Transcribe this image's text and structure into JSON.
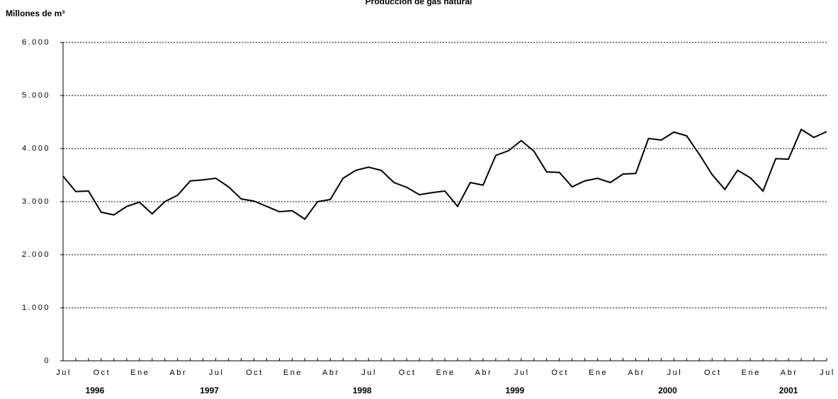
{
  "chart_data": {
    "type": "line",
    "title": "Producción de gas natural",
    "y_label": "Millones de m³",
    "categories": [
      "Jul",
      null,
      null,
      "Oct",
      null,
      null,
      "Ene",
      null,
      null,
      "Abr",
      null,
      null,
      "Jul",
      null,
      null,
      "Oct",
      null,
      null,
      "Ene",
      null,
      null,
      "Abr",
      null,
      null,
      "Jul",
      null,
      null,
      "Oct",
      null,
      null,
      "Ene",
      null,
      null,
      "Abr",
      null,
      null,
      "Jul",
      null,
      null,
      "Oct",
      null,
      null,
      "Ene",
      null,
      null,
      "Abr",
      null,
      null,
      "Jul",
      null,
      null,
      "Oct",
      null,
      null,
      "Ene",
      null,
      null,
      "Abr",
      null,
      null,
      "Jul"
    ],
    "years": [
      "1996",
      "1997",
      "1998",
      "1999",
      "2000",
      "2001"
    ],
    "series": [
      {
        "name": "Producción",
        "color": "#000000",
        "values": [
          3480,
          3190,
          3200,
          2800,
          2750,
          2910,
          2990,
          2770,
          3000,
          3120,
          3390,
          3410,
          3440,
          3280,
          3050,
          3010,
          2910,
          2810,
          2830,
          2670,
          3000,
          3040,
          3440,
          3590,
          3650,
          3590,
          3360,
          3270,
          3130,
          3170,
          3200,
          2910,
          3360,
          3310,
          3870,
          3960,
          4150,
          3950,
          3560,
          3550,
          3280,
          3390,
          3440,
          3360,
          3520,
          3530,
          4190,
          4160,
          4310,
          4240,
          3890,
          3510,
          3230,
          3590,
          3450,
          3200,
          3810,
          3800,
          4360,
          4210,
          4320
        ]
      }
    ],
    "ylim": [
      0,
      6000
    ],
    "yticks": [
      0,
      {
        "value": 1000,
        "label": "1.000"
      },
      {
        "value": 2000,
        "label": "2.000"
      },
      {
        "value": 3000,
        "label": "3.000"
      },
      {
        "value": 4000,
        "label": "4.000"
      },
      {
        "value": 5000,
        "label": "5.000"
      },
      {
        "value": 6000,
        "label": "6.000"
      }
    ],
    "grid": true
  }
}
